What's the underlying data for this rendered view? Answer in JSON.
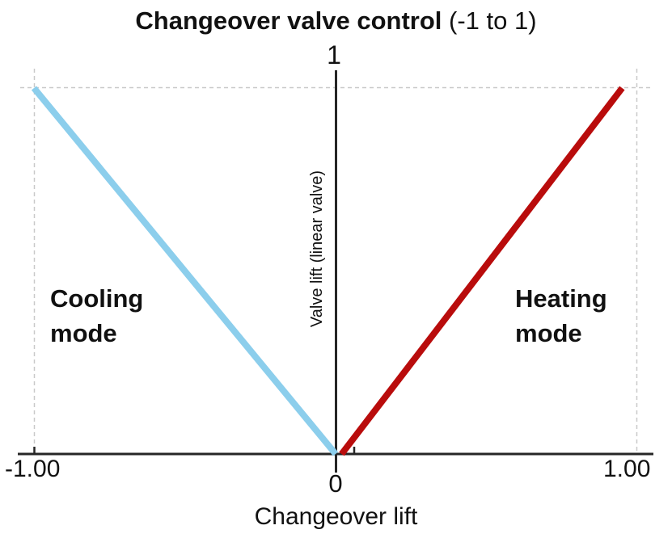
{
  "title": {
    "main": "Changeover valve control",
    "suffix": " (-1 to 1)"
  },
  "labels": {
    "y_max_tick": "1",
    "x_tick_left": "-1.00",
    "x_tick_zero": "0",
    "x_tick_right": "1.00",
    "x_axis_title": "Changeover lift",
    "y_axis_title": "Valve lift (linear valve)",
    "cooling_mode": "Cooling\nmode",
    "heating_mode": "Heating\nmode"
  },
  "colors": {
    "cooling_line": "#8CCEEC",
    "heating_line": "#B90C0C",
    "axis": "#262626",
    "gridline": "#C9C9C9",
    "text": "#111111"
  },
  "chart_data": {
    "type": "line",
    "title": "Changeover valve control (-1 to 1)",
    "xlabel": "Changeover lift",
    "ylabel": "Valve lift (linear valve)",
    "xlim": [
      -1.05,
      1.05
    ],
    "ylim": [
      0,
      1.05
    ],
    "x_tick_labels": [
      "-1.00",
      "0",
      "1.00"
    ],
    "y_tick_labels": [
      "1"
    ],
    "grid": "dashed gray gridlines at x=-1, x=+1 and y=1; solid black axes crossing at (0,0)",
    "legend_position": "none",
    "series": [
      {
        "name": "Cooling mode",
        "color": "#8CCEEC",
        "points": [
          [
            -1.0,
            1.0
          ],
          [
            0.0,
            0.0
          ]
        ]
      },
      {
        "name": "Heating mode",
        "color": "#B90C0C",
        "points": [
          [
            0.02,
            0.0
          ],
          [
            0.95,
            1.0
          ]
        ]
      }
    ],
    "annotations": [
      {
        "text": "Cooling mode",
        "x": -0.95,
        "y": 0.42
      },
      {
        "text": "Heating mode",
        "x": 0.6,
        "y": 0.42
      }
    ]
  }
}
